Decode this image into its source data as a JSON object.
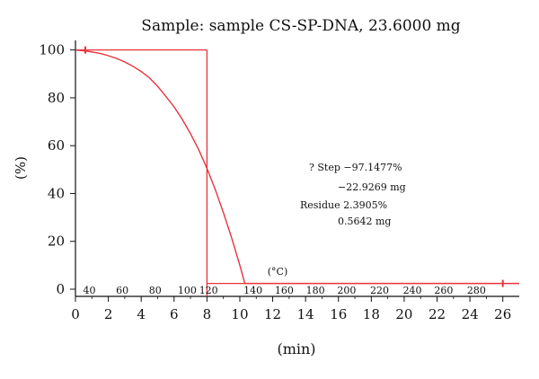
{
  "chart_data": {
    "type": "line",
    "title": "Sample: sample CS-SP-DNA, 23.6000 mg",
    "xlabel": "(min)",
    "ylabel": "(%)",
    "xlim": [
      0,
      27
    ],
    "ylim": [
      -3,
      104
    ],
    "x_ticks": [
      0,
      2,
      4,
      6,
      8,
      10,
      12,
      14,
      16,
      18,
      20,
      22,
      24,
      26
    ],
    "y_ticks": [
      0,
      20,
      40,
      60,
      80,
      100
    ],
    "temperature_unit": "(°C)",
    "temperature_ticks": [
      {
        "label": "40",
        "x": 0.85
      },
      {
        "label": "60",
        "x": 2.85
      },
      {
        "label": "80",
        "x": 4.85
      },
      {
        "label": "100",
        "x": 6.8
      },
      {
        "label": "120",
        "x": 8.1
      },
      {
        "label": "140",
        "x": 10.8
      },
      {
        "label": "160",
        "x": 12.7
      },
      {
        "label": "180",
        "x": 14.6
      },
      {
        "label": "200",
        "x": 16.5
      },
      {
        "label": "220",
        "x": 18.5
      },
      {
        "label": "240",
        "x": 20.5
      },
      {
        "label": "260",
        "x": 22.4
      },
      {
        "label": "280",
        "x": 24.4
      }
    ],
    "series": [
      {
        "color": "#e8323c",
        "x": [
          0,
          0.5,
          1,
          1.5,
          2,
          2.5,
          3,
          3.5,
          4,
          4.5,
          5,
          5.5,
          6,
          6.5,
          7,
          7.5,
          8,
          8.5,
          9,
          9.5,
          10,
          10.3,
          11,
          12,
          14,
          16,
          18,
          20,
          22,
          24,
          26,
          27
        ],
        "y": [
          100,
          99.7,
          99.2,
          98.6,
          97.6,
          96.5,
          95.0,
          93.2,
          91.0,
          88.4,
          84.8,
          80.6,
          76.2,
          71.0,
          65.0,
          58.3,
          50.5,
          41.8,
          32.0,
          21.5,
          10.0,
          2.4,
          2.4,
          2.4,
          2.4,
          2.4,
          2.4,
          2.4,
          2.4,
          2.4,
          2.4,
          2.4
        ]
      }
    ],
    "step_markers": {
      "top_line": {
        "x_start": 0,
        "x_end": 8,
        "y": 100
      },
      "bottom_line": {
        "x_start": 8,
        "x_end": 27,
        "y": 2.4
      },
      "vertical_x": 8,
      "start_tick_x": 0.6,
      "end_tick_x": 26
    },
    "annotations": {
      "step": "? Step −97.1477%",
      "step_mg": "−22.9269 mg",
      "residue": "Residue 2.3905%",
      "residue_mg": "0.5642 mg"
    }
  }
}
